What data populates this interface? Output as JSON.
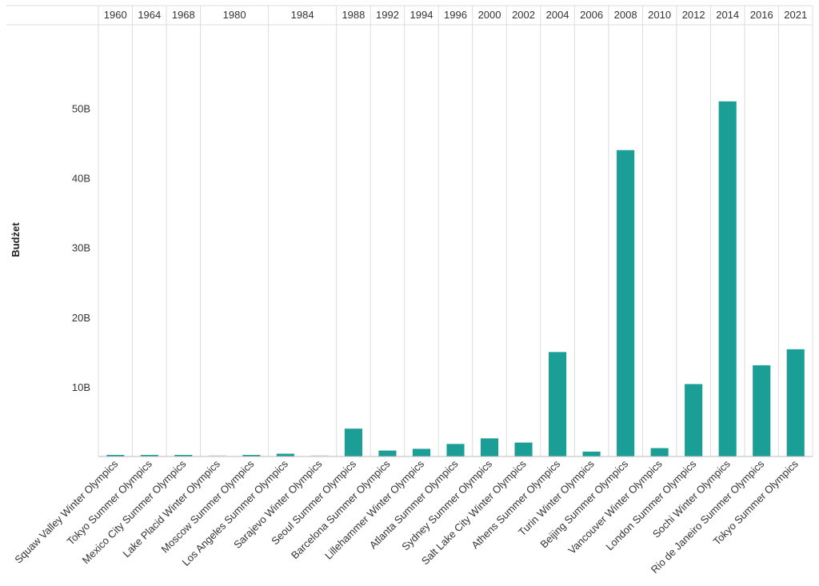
{
  "chart_data": {
    "type": "bar",
    "ylabel": "Budżet",
    "xlabel": "",
    "ylim": [
      0,
      62000000000
    ],
    "y_ticks": [
      {
        "value": 10000000000,
        "label": "10B"
      },
      {
        "value": 20000000000,
        "label": "20B"
      },
      {
        "value": 30000000000,
        "label": "30B"
      },
      {
        "value": 40000000000,
        "label": "40B"
      },
      {
        "value": 50000000000,
        "label": "50B"
      }
    ],
    "grid": true,
    "bar_color": "#1a9e96",
    "faint_bar_color": "#e8e8e8",
    "year_groups": [
      {
        "year": "1960",
        "count": 1
      },
      {
        "year": "1964",
        "count": 1
      },
      {
        "year": "1968",
        "count": 1
      },
      {
        "year": "1980",
        "count": 2
      },
      {
        "year": "1984",
        "count": 2
      },
      {
        "year": "1988",
        "count": 1
      },
      {
        "year": "1992",
        "count": 1
      },
      {
        "year": "1994",
        "count": 1
      },
      {
        "year": "1996",
        "count": 1
      },
      {
        "year": "2000",
        "count": 1
      },
      {
        "year": "2002",
        "count": 1
      },
      {
        "year": "2004",
        "count": 1
      },
      {
        "year": "2006",
        "count": 1
      },
      {
        "year": "2008",
        "count": 1
      },
      {
        "year": "2010",
        "count": 1
      },
      {
        "year": "2012",
        "count": 1
      },
      {
        "year": "2014",
        "count": 1
      },
      {
        "year": "2016",
        "count": 1
      },
      {
        "year": "2021",
        "count": 1
      }
    ],
    "categories": [
      "Squaw Valley Winter Olympics",
      "Tokyo Summer Olympics",
      "Mexico City Summer Olympics",
      "Lake Placid Winter Olympics",
      "Moscow Summer Olympics",
      "Los Angeles Summer Olympics",
      "Sarajevo Winter Olympics",
      "Seoul Summer Olympics",
      "Barcelona Summer Olympics",
      "Lillehammer Winter Olympics",
      "Atlanta Summer Olympics",
      "Sydney Summer Olympics",
      "Salt Lake City Winter Olympics",
      "Athens Summer Olympics",
      "Turin Winter Olympics",
      "Beijing Summer Olympics",
      "Vancouver Winter Olympics",
      "London Summer Olympics",
      "Sochi Winter Olympics",
      "Rio de Janeiro Summer Olympics",
      "Tokyo Summer Olympics"
    ],
    "values": [
      80000000,
      72000000,
      176000000,
      150000000,
      150000000,
      400000000,
      150000000,
      4000000000,
      850000000,
      1100000000,
      1800000000,
      2600000000,
      2000000000,
      15000000000,
      700000000,
      44000000000,
      1200000000,
      10400000000,
      51000000000,
      13100000000,
      15400000000
    ],
    "faint": [
      false,
      false,
      false,
      true,
      false,
      false,
      true,
      false,
      false,
      false,
      false,
      false,
      false,
      false,
      false,
      false,
      false,
      false,
      false,
      false,
      false
    ]
  }
}
